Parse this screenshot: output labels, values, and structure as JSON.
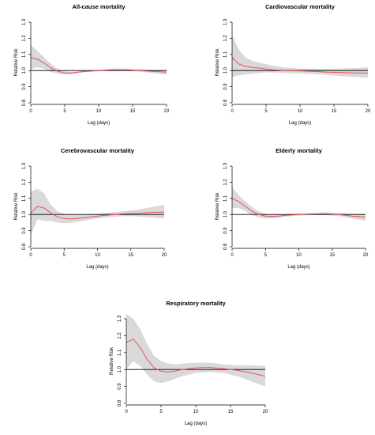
{
  "chart_data": [
    {
      "type": "line",
      "title": "All-cause mortality",
      "xlabel": "Lag (days)",
      "ylabel": "Relative Risk",
      "xlim": [
        0,
        20
      ],
      "ylim": [
        0.8,
        1.3
      ],
      "xticks": [
        "0",
        "5",
        "10",
        "15",
        "20"
      ],
      "yticks": [
        "0.8",
        "0.9",
        "1.0",
        "1.1",
        "1.2",
        "1.3"
      ],
      "reference_line": 1.0,
      "grid": false,
      "colors": {
        "line": "#e8505b",
        "band": "#d9d9d9",
        "reference": "#000000"
      },
      "series": [
        {
          "x": [
            0,
            1,
            2,
            3,
            4,
            5,
            6,
            7,
            8,
            10,
            12,
            14,
            16,
            18,
            20
          ],
          "y": [
            1.08,
            1.07,
            1.045,
            1.015,
            0.995,
            0.985,
            0.985,
            0.99,
            0.995,
            1.0,
            1.005,
            1.005,
            1.0,
            0.995,
            0.99
          ],
          "lower": [
            1.01,
            1.02,
            1.01,
            0.99,
            0.98,
            0.975,
            0.978,
            0.985,
            0.99,
            0.995,
            0.998,
            0.998,
            0.993,
            0.985,
            0.975
          ],
          "upper": [
            1.16,
            1.12,
            1.08,
            1.04,
            1.01,
            0.995,
            0.992,
            0.995,
            1.0,
            1.005,
            1.012,
            1.012,
            1.007,
            1.005,
            1.005
          ]
        }
      ]
    },
    {
      "type": "line",
      "title": "Cardiovascular mortality",
      "xlabel": "Lag (days)",
      "ylabel": "Relative Risk",
      "xlim": [
        0,
        20
      ],
      "ylim": [
        0.8,
        1.3
      ],
      "xticks": [
        "0",
        "5",
        "10",
        "15",
        "20"
      ],
      "yticks": [
        "0.8",
        "0.9",
        "1.0",
        "1.1",
        "1.2",
        "1.3"
      ],
      "reference_line": 1.0,
      "grid": false,
      "colors": {
        "line": "#e8505b",
        "band": "#d9d9d9",
        "reference": "#000000"
      },
      "series": [
        {
          "x": [
            0,
            1,
            2,
            3,
            4,
            5,
            6,
            8,
            10,
            12,
            14,
            16,
            18,
            20
          ],
          "y": [
            1.08,
            1.04,
            1.025,
            1.02,
            1.015,
            1.01,
            1.005,
            1.0,
            0.998,
            0.995,
            0.99,
            0.988,
            0.985,
            0.985
          ],
          "lower": [
            0.96,
            0.97,
            0.975,
            0.98,
            0.985,
            0.988,
            0.988,
            0.985,
            0.983,
            0.978,
            0.972,
            0.965,
            0.96,
            0.955
          ],
          "upper": [
            1.22,
            1.13,
            1.08,
            1.06,
            1.05,
            1.04,
            1.03,
            1.018,
            1.012,
            1.012,
            1.01,
            1.012,
            1.015,
            1.02
          ]
        }
      ]
    },
    {
      "type": "line",
      "title": "Cerebrovascular mortality",
      "xlabel": "Lag (days)",
      "ylabel": "Relative Risk",
      "xlim": [
        0,
        20
      ],
      "ylim": [
        0.8,
        1.3
      ],
      "xticks": [
        "0",
        "5",
        "10",
        "15",
        "20"
      ],
      "yticks": [
        "0.8",
        "0.9",
        "1.0",
        "1.1",
        "1.2",
        "1.3"
      ],
      "reference_line": 1.0,
      "grid": false,
      "colors": {
        "line": "#e8505b",
        "band": "#d9d9d9",
        "reference": "#000000"
      },
      "series": [
        {
          "x": [
            0,
            1,
            2,
            3,
            4,
            5,
            6,
            7,
            8,
            10,
            12,
            14,
            16,
            18,
            20
          ],
          "y": [
            1.01,
            1.05,
            1.04,
            1.01,
            0.985,
            0.975,
            0.972,
            0.975,
            0.98,
            0.99,
            0.998,
            1.005,
            1.008,
            1.012,
            1.015
          ],
          "lower": [
            0.87,
            0.97,
            0.96,
            0.96,
            0.95,
            0.945,
            0.948,
            0.955,
            0.962,
            0.975,
            0.985,
            0.99,
            0.988,
            0.982,
            0.975
          ],
          "upper": [
            1.14,
            1.16,
            1.13,
            1.06,
            1.02,
            1.005,
            0.998,
            0.998,
            1.0,
            1.005,
            1.012,
            1.02,
            1.03,
            1.045,
            1.06
          ]
        }
      ]
    },
    {
      "type": "line",
      "title": "Elderly mortality",
      "xlabel": "Lag (days)",
      "ylabel": "Relative Risk",
      "xlim": [
        0,
        20
      ],
      "ylim": [
        0.8,
        1.3
      ],
      "xticks": [
        "0",
        "5",
        "10",
        "15",
        "20"
      ],
      "yticks": [
        "0.8",
        "0.9",
        "1.0",
        "1.1",
        "1.2",
        "1.3"
      ],
      "reference_line": 1.0,
      "grid": false,
      "colors": {
        "line": "#e8505b",
        "band": "#d9d9d9",
        "reference": "#000000"
      },
      "series": [
        {
          "x": [
            0,
            1,
            2,
            3,
            4,
            5,
            6,
            7,
            8,
            10,
            12,
            14,
            16,
            18,
            20
          ],
          "y": [
            1.1,
            1.08,
            1.05,
            1.02,
            1.0,
            0.99,
            0.988,
            0.99,
            0.995,
            1.0,
            1.003,
            1.005,
            1.0,
            0.99,
            0.985
          ],
          "lower": [
            1.04,
            1.04,
            1.02,
            0.995,
            0.982,
            0.975,
            0.975,
            0.98,
            0.987,
            0.993,
            0.996,
            0.997,
            0.99,
            0.975,
            0.962
          ],
          "upper": [
            1.17,
            1.12,
            1.08,
            1.045,
            1.02,
            1.005,
            1.0,
            1.0,
            1.003,
            1.008,
            1.01,
            1.013,
            1.01,
            1.005,
            1.005
          ]
        }
      ]
    },
    {
      "type": "line",
      "title": "Respiratory mortality",
      "xlabel": "Lag (days)",
      "ylabel": "Relative Risk",
      "xlim": [
        0,
        20
      ],
      "ylim": [
        0.8,
        1.3
      ],
      "xticks": [
        "0",
        "5",
        "10",
        "15",
        "20"
      ],
      "yticks": [
        "0.8",
        "0.9",
        "1.0",
        "1.1",
        "1.2",
        "1.3"
      ],
      "reference_line": 1.0,
      "grid": false,
      "colors": {
        "line": "#e8505b",
        "band": "#d9d9d9",
        "reference": "#000000"
      },
      "series": [
        {
          "x": [
            0,
            1,
            2,
            3,
            4,
            5,
            6,
            7,
            8,
            10,
            12,
            14,
            16,
            18,
            20
          ],
          "y": [
            1.16,
            1.18,
            1.13,
            1.06,
            1.01,
            0.99,
            0.985,
            0.99,
            1.0,
            1.01,
            1.012,
            1.005,
            0.995,
            0.98,
            0.96
          ],
          "lower": [
            1.0,
            1.05,
            1.02,
            0.97,
            0.93,
            0.92,
            0.93,
            0.945,
            0.96,
            0.98,
            0.985,
            0.98,
            0.96,
            0.93,
            0.9
          ],
          "upper": [
            1.33,
            1.3,
            1.24,
            1.15,
            1.08,
            1.05,
            1.035,
            1.03,
            1.035,
            1.04,
            1.04,
            1.03,
            1.025,
            1.025,
            1.02
          ]
        }
      ]
    }
  ]
}
